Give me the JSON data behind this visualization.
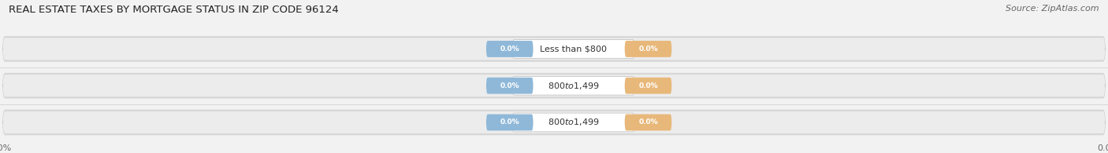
{
  "title": "REAL ESTATE TAXES BY MORTGAGE STATUS IN ZIP CODE 96124",
  "source": "Source: ZipAtlas.com",
  "categories": [
    "Less than $800",
    "$800 to $1,499",
    "$800 to $1,499"
  ],
  "without_mortgage": [
    0.0,
    0.0,
    0.0
  ],
  "with_mortgage": [
    0.0,
    0.0,
    0.0
  ],
  "bar_color_without": "#8fb8d8",
  "bar_color_with": "#e8b87a",
  "bg_color": "#f2f2f2",
  "bar_bg_color_outer": "#e0e0e0",
  "bar_bg_color_inner": "#ebebeb",
  "title_fontsize": 9.5,
  "source_fontsize": 8,
  "legend_fontsize": 8.5,
  "tick_fontsize": 8,
  "value_fontsize": 6.5,
  "cat_fontsize": 8
}
